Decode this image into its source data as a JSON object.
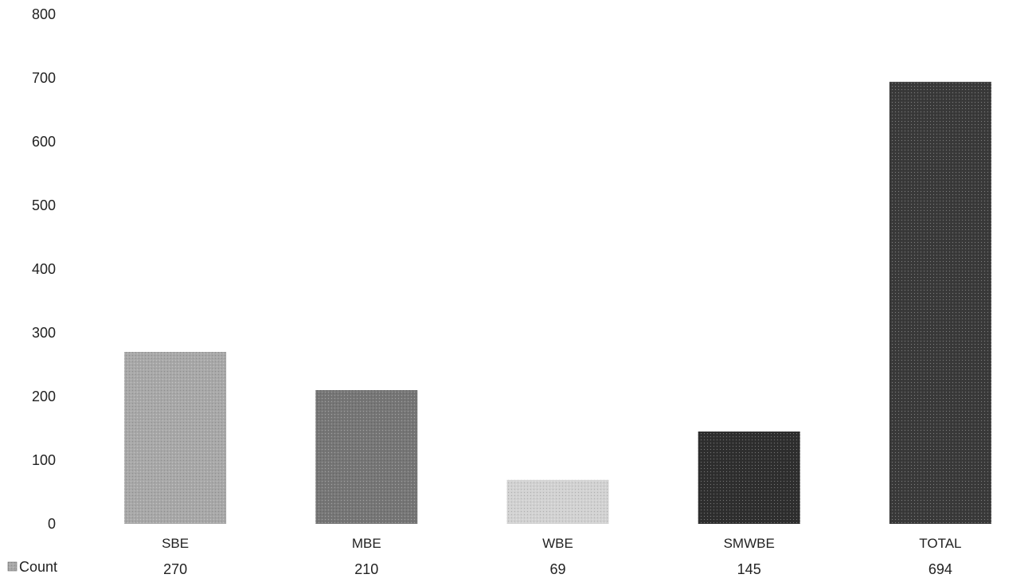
{
  "chart_data": {
    "type": "bar",
    "title": "",
    "xlabel": "",
    "ylabel": "",
    "categories": [
      "SBE",
      "MBE",
      "WBE",
      "SMWBE",
      "TOTAL"
    ],
    "series": [
      {
        "name": "Count",
        "values": [
          270,
          210,
          69,
          145,
          694
        ],
        "value_labels": [
          "270",
          "210",
          "69",
          "145",
          "694"
        ],
        "bar_colors": [
          "#a8a8a8",
          "#767676",
          "#d2d2d2",
          "#2f2f2f",
          "#3a3a3a"
        ]
      }
    ],
    "ylim": [
      0,
      800
    ],
    "yticks": [
      0,
      100,
      200,
      300,
      400,
      500,
      600,
      700,
      800
    ],
    "ytick_labels": [
      "0",
      "100",
      "200",
      "300",
      "400",
      "500",
      "600",
      "700",
      "800"
    ],
    "grid": false,
    "legend": {
      "entries": [
        "Count"
      ],
      "placement": "bottom-left, as data-table row label"
    },
    "data_table": true
  }
}
